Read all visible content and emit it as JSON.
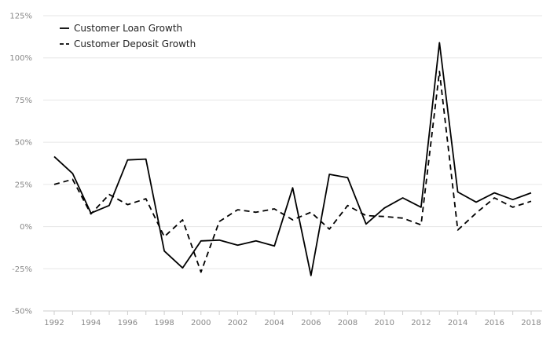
{
  "chart_data": {
    "type": "line",
    "title": "",
    "xlabel": "",
    "ylabel": "",
    "x": [
      1992,
      1993,
      1994,
      1995,
      1996,
      1997,
      1998,
      1999,
      2000,
      2001,
      2002,
      2003,
      2004,
      2005,
      2006,
      2007,
      2008,
      2009,
      2010,
      2011,
      2012,
      2013,
      2014,
      2015,
      2016,
      2017,
      2018
    ],
    "xlim": [
      1991.4,
      2018.6
    ],
    "ylim": [
      -50,
      125
    ],
    "x_ticks": [
      1992,
      1994,
      1996,
      1998,
      2000,
      2002,
      2004,
      2006,
      2008,
      2010,
      2012,
      2014,
      2016,
      2018
    ],
    "x_tick_labels": [
      "1992",
      "1994",
      "1996",
      "1998",
      "2000",
      "2002",
      "2004",
      "2006",
      "2008",
      "2010",
      "2012",
      "2014",
      "2016",
      "2018"
    ],
    "y_ticks": [
      -50,
      -25,
      0,
      25,
      50,
      75,
      100,
      125
    ],
    "y_tick_labels": [
      "-50%",
      "-25%",
      "0%",
      "25%",
      "50%",
      "75%",
      "100%",
      "125%"
    ],
    "grid": "horizontal",
    "legend_position": "top-left",
    "series": [
      {
        "name": "Customer Loan Growth",
        "style": "solid",
        "color": "#000000",
        "values": [
          41.5,
          31.5,
          8,
          12.5,
          39.5,
          40,
          -14.5,
          -24.5,
          -8.5,
          -8,
          -11,
          -8.5,
          -11.5,
          23,
          -29,
          31,
          29,
          1.5,
          11,
          17,
          11.5,
          109,
          20.5,
          14.5,
          20,
          16,
          20
        ]
      },
      {
        "name": "Customer Deposit Growth",
        "style": "dashed",
        "color": "#000000",
        "values": [
          25,
          28,
          7.5,
          19,
          13,
          16.5,
          -6,
          4,
          -27,
          3,
          10,
          8.5,
          10.5,
          4,
          8.5,
          -1.5,
          12.5,
          6.5,
          6,
          5,
          1,
          92,
          -2,
          8,
          17,
          11.5,
          15
        ]
      }
    ]
  }
}
